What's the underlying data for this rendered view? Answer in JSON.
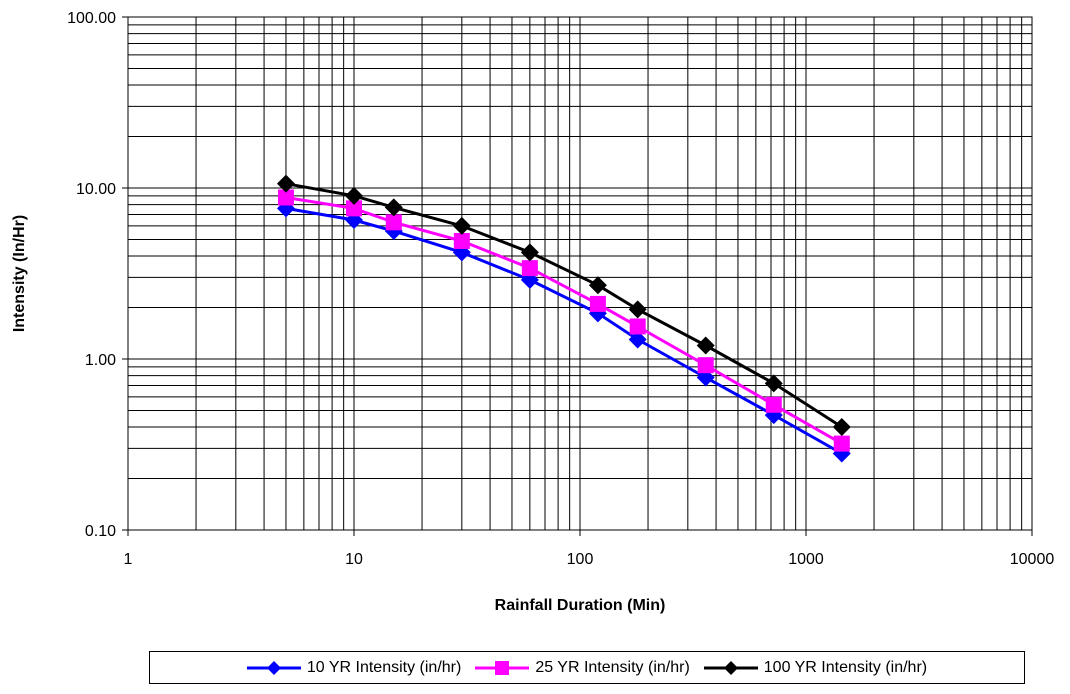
{
  "chart_data": {
    "type": "line",
    "x_scale": "log",
    "y_scale": "log",
    "xlabel": "Rainfall Duration (Min)",
    "ylabel": "Intensity (In/Hr)",
    "xlim": [
      1,
      10000
    ],
    "ylim": [
      0.1,
      100
    ],
    "x_tick_labels": [
      "1",
      "10",
      "100",
      "1000",
      "10000"
    ],
    "y_tick_labels": [
      "0.10",
      "1.00",
      "10.00",
      "100.00"
    ],
    "grid": "major and minor",
    "legend_position": "bottom",
    "x": [
      5,
      10,
      15,
      30,
      60,
      120,
      180,
      360,
      720,
      1440
    ],
    "series": [
      {
        "name": "10 YR Intensity (in/hr)",
        "color": "#0000ff",
        "marker": "diamond",
        "values": [
          7.6,
          6.5,
          5.6,
          4.2,
          2.9,
          1.85,
          1.3,
          0.78,
          0.47,
          0.28
        ]
      },
      {
        "name": "25 YR Intensity (in/hr)",
        "color": "#ff00ff",
        "marker": "square",
        "values": [
          8.8,
          7.6,
          6.3,
          4.9,
          3.4,
          2.1,
          1.55,
          0.92,
          0.54,
          0.32
        ]
      },
      {
        "name": "100 YR Intensity (in/hr)",
        "color": "#000000",
        "marker": "diamond",
        "values": [
          10.6,
          9.0,
          7.7,
          6.0,
          4.2,
          2.7,
          1.95,
          1.2,
          0.72,
          0.4
        ]
      }
    ]
  }
}
